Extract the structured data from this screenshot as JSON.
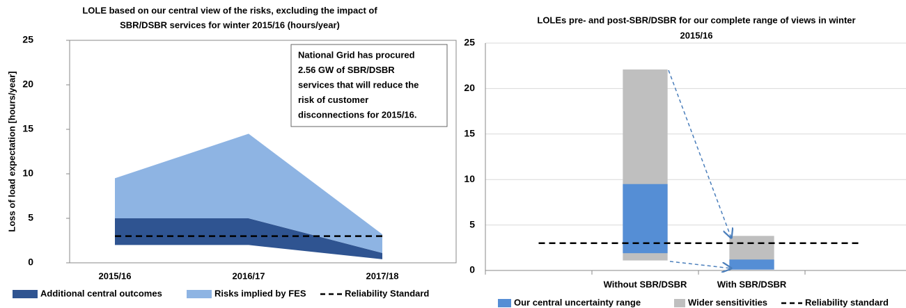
{
  "chart_data": [
    {
      "type": "area",
      "title": [
        "LOLE based on our central view of the risks, excluding the impact of",
        "SBR/DSBR services for winter 2015/16 (hours/year)"
      ],
      "y_label": "Loss of load expectation [hours/year]",
      "categories": [
        "2015/16",
        "2016/17",
        "2017/18"
      ],
      "ylim": [
        0,
        25
      ],
      "yticks": [
        0,
        5,
        10,
        15,
        20,
        25
      ],
      "grid": false,
      "annotation": [
        "National Grid has procured",
        "2.56 GW of SBR/DSBR",
        "services that will reduce the",
        "risk of customer",
        "disconnections for 2015/16."
      ],
      "series": [
        {
          "name": "Additional central outcomes",
          "color": "#2f5491",
          "low": [
            2,
            2,
            0.4
          ],
          "high": [
            5,
            5,
            1.1
          ]
        },
        {
          "name": "Risks implied by FES",
          "color": "#8eb4e3",
          "low": [
            5,
            5,
            1.1
          ],
          "high": [
            9.5,
            14.5,
            3.2
          ]
        },
        {
          "name": "Reliability Standard",
          "color": "#000000",
          "dashed": true,
          "values": [
            3,
            3,
            3
          ]
        }
      ]
    },
    {
      "type": "bar",
      "title": [
        "LOLEs pre- and post-SBR/DSBR for our complete range of views in winter",
        "2015/16"
      ],
      "categories": [
        null,
        "Without SBR/DSBR",
        "With SBR/DSBR",
        null
      ],
      "ylim": [
        0,
        25
      ],
      "yticks": [
        0,
        5,
        10,
        15,
        20,
        25
      ],
      "grid": true,
      "series": [
        {
          "name": "Our central uncertainty range",
          "color": "#558ed5",
          "low": [
            null,
            1.9,
            0.1,
            null
          ],
          "high": [
            null,
            9.5,
            1.2,
            null
          ]
        },
        {
          "name": "Wider sensitivities",
          "color": "#bfbfbf",
          "low": [
            null,
            1.1,
            0.1,
            null
          ],
          "high": [
            null,
            22.1,
            3.8,
            null
          ]
        },
        {
          "name": "Reliability standard",
          "color": "#000000",
          "dashed": true,
          "values": [
            3,
            3,
            3,
            3
          ]
        }
      ]
    }
  ]
}
